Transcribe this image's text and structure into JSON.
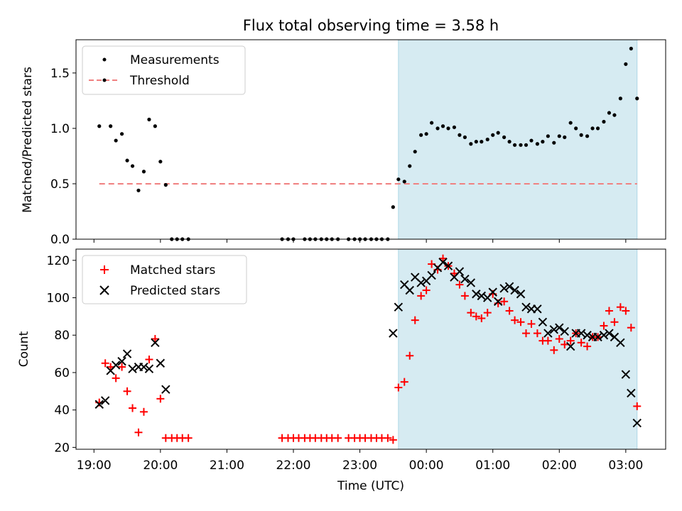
{
  "chart_data": [
    {
      "type": "scatter",
      "title": "Flux total observing time = 3.58 h",
      "xlabel": "",
      "ylabel": "Matched/Predicted stars",
      "x_unit": "hours (UTC, continuing past midnight)",
      "xlim": [
        18.73,
        27.6
      ],
      "ylim": [
        0,
        1.8
      ],
      "yticks": [
        0.0,
        0.5,
        1.0,
        1.5
      ],
      "ytick_labels": [
        "0.0",
        "0.5",
        "1.0",
        "1.5"
      ],
      "shaded_interval": [
        23.58,
        27.17
      ],
      "shade_color": "#add8e6",
      "legend": {
        "placement": "top-left",
        "entries": [
          "Measurements",
          "Threshold"
        ]
      },
      "series": [
        {
          "name": "Measurements",
          "color": "#000000",
          "marker": "dot",
          "points": [
            [
              19.08,
              1.02
            ],
            [
              19.25,
              1.02
            ],
            [
              19.33,
              0.89
            ],
            [
              19.42,
              0.95
            ],
            [
              19.5,
              0.71
            ],
            [
              19.58,
              0.66
            ],
            [
              19.67,
              0.44
            ],
            [
              19.75,
              0.61
            ],
            [
              19.83,
              1.08
            ],
            [
              19.92,
              1.02
            ],
            [
              20.0,
              0.7
            ],
            [
              20.08,
              0.49
            ],
            [
              20.17,
              0.0
            ],
            [
              20.25,
              0.0
            ],
            [
              20.33,
              0.0
            ],
            [
              20.42,
              0.0
            ],
            [
              21.83,
              0.0
            ],
            [
              21.92,
              0.0
            ],
            [
              22.0,
              0.0
            ],
            [
              22.17,
              0.0
            ],
            [
              22.25,
              0.0
            ],
            [
              22.33,
              0.0
            ],
            [
              22.42,
              0.0
            ],
            [
              22.5,
              0.0
            ],
            [
              22.58,
              0.0
            ],
            [
              22.67,
              0.0
            ],
            [
              22.83,
              0.0
            ],
            [
              22.92,
              0.0
            ],
            [
              23.0,
              0.0
            ],
            [
              23.08,
              0.0
            ],
            [
              23.17,
              0.0
            ],
            [
              23.25,
              0.0
            ],
            [
              23.33,
              0.0
            ],
            [
              23.42,
              0.0
            ],
            [
              23.5,
              0.29
            ],
            [
              23.58,
              0.54
            ],
            [
              23.67,
              0.52
            ],
            [
              23.75,
              0.66
            ],
            [
              23.83,
              0.79
            ],
            [
              23.92,
              0.94
            ],
            [
              24.0,
              0.95
            ],
            [
              24.08,
              1.05
            ],
            [
              24.17,
              1.0
            ],
            [
              24.25,
              1.02
            ],
            [
              24.33,
              1.0
            ],
            [
              24.42,
              1.01
            ],
            [
              24.5,
              0.94
            ],
            [
              24.58,
              0.92
            ],
            [
              24.67,
              0.86
            ],
            [
              24.75,
              0.88
            ],
            [
              24.83,
              0.88
            ],
            [
              24.92,
              0.9
            ],
            [
              25.0,
              0.94
            ],
            [
              25.08,
              0.96
            ],
            [
              25.17,
              0.92
            ],
            [
              25.25,
              0.88
            ],
            [
              25.33,
              0.85
            ],
            [
              25.42,
              0.85
            ],
            [
              25.5,
              0.85
            ],
            [
              25.58,
              0.89
            ],
            [
              25.67,
              0.86
            ],
            [
              25.75,
              0.88
            ],
            [
              25.83,
              0.93
            ],
            [
              25.92,
              0.87
            ],
            [
              26.0,
              0.93
            ],
            [
              26.08,
              0.92
            ],
            [
              26.17,
              1.05
            ],
            [
              26.25,
              1.0
            ],
            [
              26.33,
              0.94
            ],
            [
              26.42,
              0.93
            ],
            [
              26.5,
              1.0
            ],
            [
              26.58,
              1.0
            ],
            [
              26.67,
              1.06
            ],
            [
              26.75,
              1.14
            ],
            [
              26.83,
              1.12
            ],
            [
              26.92,
              1.27
            ],
            [
              27.0,
              1.58
            ],
            [
              27.08,
              1.72
            ],
            [
              27.17,
              1.27
            ]
          ]
        },
        {
          "name": "Threshold",
          "color": "#f08080",
          "style": "dashed",
          "points": [
            [
              19.08,
              0.5
            ],
            [
              27.17,
              0.5
            ]
          ]
        }
      ]
    },
    {
      "type": "scatter",
      "title": "",
      "xlabel": "Time (UTC)",
      "ylabel": "Count",
      "x_unit": "hours (UTC, continuing past midnight)",
      "xlim": [
        18.73,
        27.6
      ],
      "ylim": [
        19,
        126
      ],
      "xticks": [
        19,
        20,
        21,
        22,
        23,
        24,
        25,
        26,
        27
      ],
      "xtick_labels": [
        "19:00",
        "20:00",
        "21:00",
        "22:00",
        "23:00",
        "00:00",
        "01:00",
        "02:00",
        "03:00"
      ],
      "yticks": [
        20,
        40,
        60,
        80,
        100,
        120
      ],
      "ytick_labels": [
        "20",
        "40",
        "60",
        "80",
        "100",
        "120"
      ],
      "shaded_interval": [
        23.58,
        27.17
      ],
      "shade_color": "#add8e6",
      "legend": {
        "placement": "top-left",
        "entries": [
          "Matched stars",
          "Predicted stars"
        ]
      },
      "series": [
        {
          "name": "Matched stars",
          "color": "#ff0000",
          "marker": "plus",
          "points": [
            [
              19.08,
              44
            ],
            [
              19.17,
              65
            ],
            [
              19.25,
              63
            ],
            [
              19.33,
              57
            ],
            [
              19.42,
              63
            ],
            [
              19.5,
              50
            ],
            [
              19.58,
              41
            ],
            [
              19.67,
              28
            ],
            [
              19.75,
              39
            ],
            [
              19.83,
              67
            ],
            [
              19.92,
              78
            ],
            [
              20.0,
              46
            ],
            [
              20.08,
              25
            ],
            [
              20.17,
              25
            ],
            [
              20.25,
              25
            ],
            [
              20.33,
              25
            ],
            [
              20.42,
              25
            ],
            [
              21.83,
              25
            ],
            [
              21.92,
              25
            ],
            [
              22.0,
              25
            ],
            [
              22.08,
              25
            ],
            [
              22.17,
              25
            ],
            [
              22.25,
              25
            ],
            [
              22.33,
              25
            ],
            [
              22.42,
              25
            ],
            [
              22.5,
              25
            ],
            [
              22.58,
              25
            ],
            [
              22.67,
              25
            ],
            [
              22.83,
              25
            ],
            [
              22.92,
              25
            ],
            [
              23.0,
              25
            ],
            [
              23.08,
              25
            ],
            [
              23.17,
              25
            ],
            [
              23.25,
              25
            ],
            [
              23.33,
              25
            ],
            [
              23.42,
              25
            ],
            [
              23.5,
              24
            ],
            [
              23.58,
              52
            ],
            [
              23.67,
              55
            ],
            [
              23.75,
              69
            ],
            [
              23.83,
              88
            ],
            [
              23.92,
              101
            ],
            [
              24.0,
              104
            ],
            [
              24.08,
              118
            ],
            [
              24.17,
              115
            ],
            [
              24.25,
              121
            ],
            [
              24.33,
              117
            ],
            [
              24.42,
              113
            ],
            [
              24.5,
              107
            ],
            [
              24.58,
              101
            ],
            [
              24.67,
              92
            ],
            [
              24.75,
              90
            ],
            [
              24.83,
              89
            ],
            [
              24.92,
              92
            ],
            [
              25.0,
              102
            ],
            [
              25.08,
              97
            ],
            [
              25.17,
              98
            ],
            [
              25.25,
              93
            ],
            [
              25.33,
              88
            ],
            [
              25.42,
              87
            ],
            [
              25.5,
              81
            ],
            [
              25.58,
              86
            ],
            [
              25.67,
              81
            ],
            [
              25.75,
              77
            ],
            [
              25.83,
              77
            ],
            [
              25.92,
              72
            ],
            [
              26.0,
              78
            ],
            [
              26.08,
              75
            ],
            [
              26.17,
              77
            ],
            [
              26.25,
              81
            ],
            [
              26.33,
              76
            ],
            [
              26.42,
              74
            ],
            [
              26.5,
              79
            ],
            [
              26.58,
              79
            ],
            [
              26.67,
              85
            ],
            [
              26.75,
              93
            ],
            [
              26.83,
              87
            ],
            [
              26.92,
              95
            ],
            [
              27.0,
              93
            ],
            [
              27.08,
              84
            ],
            [
              27.17,
              42
            ]
          ]
        },
        {
          "name": "Predicted stars",
          "color": "#000000",
          "marker": "x",
          "points": [
            [
              19.08,
              43
            ],
            [
              19.17,
              45
            ],
            [
              19.25,
              61
            ],
            [
              19.33,
              64
            ],
            [
              19.42,
              66
            ],
            [
              19.5,
              70
            ],
            [
              19.58,
              62
            ],
            [
              19.67,
              63
            ],
            [
              19.75,
              63
            ],
            [
              19.83,
              62
            ],
            [
              19.92,
              76
            ],
            [
              20.0,
              65
            ],
            [
              20.08,
              51
            ],
            [
              23.5,
              81
            ],
            [
              23.58,
              95
            ],
            [
              23.67,
              107
            ],
            [
              23.75,
              104
            ],
            [
              23.83,
              111
            ],
            [
              23.92,
              108
            ],
            [
              24.0,
              109
            ],
            [
              24.08,
              112
            ],
            [
              24.17,
              116
            ],
            [
              24.25,
              119
            ],
            [
              24.33,
              117
            ],
            [
              24.42,
              111
            ],
            [
              24.5,
              114
            ],
            [
              24.58,
              110
            ],
            [
              24.67,
              108
            ],
            [
              24.75,
              102
            ],
            [
              24.83,
              101
            ],
            [
              24.92,
              100
            ],
            [
              25.0,
              103
            ],
            [
              25.08,
              98
            ],
            [
              25.17,
              105
            ],
            [
              25.25,
              106
            ],
            [
              25.33,
              104
            ],
            [
              25.42,
              102
            ],
            [
              25.5,
              95
            ],
            [
              25.58,
              94
            ],
            [
              25.67,
              94
            ],
            [
              25.75,
              87
            ],
            [
              25.83,
              81
            ],
            [
              25.92,
              83
            ],
            [
              26.0,
              84
            ],
            [
              26.08,
              82
            ],
            [
              26.17,
              74
            ],
            [
              26.25,
              81
            ],
            [
              26.33,
              81
            ],
            [
              26.42,
              80
            ],
            [
              26.5,
              79
            ],
            [
              26.58,
              79
            ],
            [
              26.67,
              80
            ],
            [
              26.75,
              81
            ],
            [
              26.83,
              79
            ],
            [
              26.92,
              76
            ],
            [
              27.0,
              59
            ],
            [
              27.08,
              49
            ],
            [
              27.17,
              33
            ]
          ]
        }
      ]
    }
  ]
}
